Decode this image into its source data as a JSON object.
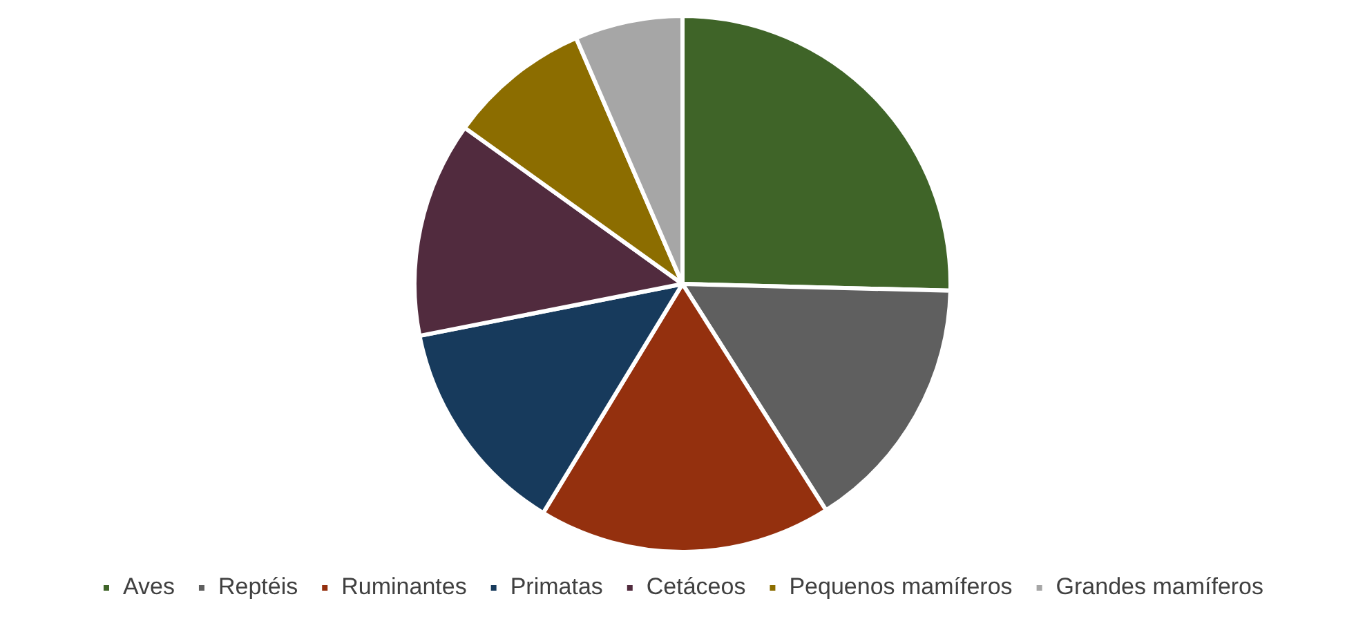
{
  "chart_data": {
    "type": "pie",
    "categories": [
      "Aves",
      "Reptéis",
      "Ruminantes",
      "Primatas",
      "Cetáceos",
      "Pequenos mamíferos",
      "Grandes mamíferos"
    ],
    "values": [
      25.4,
      15.6,
      17.7,
      13.2,
      13.0,
      8.6,
      6.5
    ],
    "colors": [
      "#3f6428",
      "#5f5f5f",
      "#94300e",
      "#173a5c",
      "#512b3e",
      "#8c6d00",
      "#a6a6a6"
    ],
    "legend": "bottom"
  }
}
